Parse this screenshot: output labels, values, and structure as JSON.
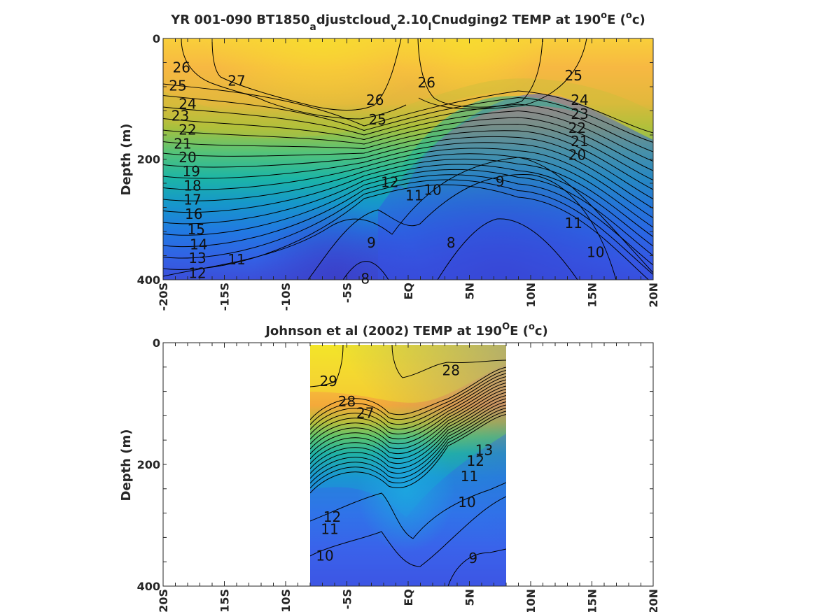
{
  "chart_data": [
    {
      "type": "contour",
      "title": "YR 001-090 BT1850_adjustcloud_v2.10_lCnudging2 TEMP at 190°E (°c)",
      "title_parts": {
        "main": "YR 001-090 BT1850",
        "sub_a": "a",
        "mid1": "djustcloud",
        "sub_v": "v",
        "mid2": "2.10",
        "sub_l": "l",
        "tail": "Cnudging2 TEMP at 190",
        "sup_o": "o",
        "e_paren": "E (",
        "sup_o2": "o",
        "end": "c)"
      },
      "ylabel": "Depth (m)",
      "xlim": [
        -20,
        20
      ],
      "ylim": [
        0,
        400
      ],
      "y_reversed": true,
      "x_ticks": [
        "-20S",
        "-15S",
        "-10S",
        "-5S",
        "EQ",
        "5N",
        "10N",
        "15N",
        "20N"
      ],
      "y_ticks": [
        "0",
        "200",
        "400"
      ],
      "colormap": "parula",
      "contour_labels": [
        {
          "v": "26",
          "lat": -18.5,
          "d": 50
        },
        {
          "v": "27",
          "lat": -14,
          "d": 72
        },
        {
          "v": "25",
          "lat": -18.8,
          "d": 80
        },
        {
          "v": "24",
          "lat": -18,
          "d": 110
        },
        {
          "v": "23",
          "lat": -18.6,
          "d": 130
        },
        {
          "v": "22",
          "lat": -18,
          "d": 153
        },
        {
          "v": "21",
          "lat": -18.4,
          "d": 176
        },
        {
          "v": "20",
          "lat": -18,
          "d": 199
        },
        {
          "v": "19",
          "lat": -17.7,
          "d": 222
        },
        {
          "v": "18",
          "lat": -17.6,
          "d": 246
        },
        {
          "v": "17",
          "lat": -17.6,
          "d": 269
        },
        {
          "v": "16",
          "lat": -17.5,
          "d": 293
        },
        {
          "v": "15",
          "lat": -17.3,
          "d": 318
        },
        {
          "v": "14",
          "lat": -17.1,
          "d": 343
        },
        {
          "v": "13",
          "lat": -17.2,
          "d": 366
        },
        {
          "v": "12",
          "lat": -17.2,
          "d": 391
        },
        {
          "v": "11",
          "lat": -14,
          "d": 368
        },
        {
          "v": "26",
          "lat": -2.7,
          "d": 104
        },
        {
          "v": "25",
          "lat": -2.5,
          "d": 136
        },
        {
          "v": "12",
          "lat": -1.5,
          "d": 240
        },
        {
          "v": "11",
          "lat": 0.5,
          "d": 262
        },
        {
          "v": "10",
          "lat": 2,
          "d": 253
        },
        {
          "v": "9",
          "lat": 7.5,
          "d": 239
        },
        {
          "v": "9",
          "lat": -3,
          "d": 340
        },
        {
          "v": "8",
          "lat": -3.5,
          "d": 400
        },
        {
          "v": "8",
          "lat": 3.5,
          "d": 340
        },
        {
          "v": "26",
          "lat": 1.5,
          "d": 75
        },
        {
          "v": "25",
          "lat": 13.5,
          "d": 63
        },
        {
          "v": "24",
          "lat": 14,
          "d": 104
        },
        {
          "v": "23",
          "lat": 14,
          "d": 127
        },
        {
          "v": "22",
          "lat": 13.8,
          "d": 150
        },
        {
          "v": "21",
          "lat": 14,
          "d": 172
        },
        {
          "v": "20",
          "lat": 13.8,
          "d": 195
        },
        {
          "v": "11",
          "lat": 13.5,
          "d": 308
        },
        {
          "v": "10",
          "lat": 15.3,
          "d": 356
        }
      ]
    },
    {
      "type": "contour",
      "title": "Johnson et al (2002) TEMP at 190°E (°c)",
      "title_parts": {
        "main": "Johnson et al (2002) TEMP at 190",
        "sup_o": "O",
        "e_paren": "E (",
        "sup_o2": "o",
        "end": "c)"
      },
      "ylabel": "Depth (m)",
      "xlim": [
        -20,
        20
      ],
      "ylim": [
        0,
        400
      ],
      "y_reversed": true,
      "data_extent_lat": [
        -8,
        8
      ],
      "x_ticks": [
        "-20S",
        "-15S",
        "-10S",
        "-5S",
        "EQ",
        "5N",
        "10N",
        "15N",
        "20N"
      ],
      "y_ticks": [
        "0",
        "200",
        "400"
      ],
      "colormap": "parula",
      "contour_labels": [
        {
          "v": "29",
          "lat": -6.5,
          "d": 65
        },
        {
          "v": "28",
          "lat": 3.5,
          "d": 47
        },
        {
          "v": "28",
          "lat": -5,
          "d": 98
        },
        {
          "v": "27",
          "lat": -3.5,
          "d": 117
        },
        {
          "v": "12",
          "lat": 5.5,
          "d": 196
        },
        {
          "v": "13",
          "lat": 6.2,
          "d": 178
        },
        {
          "v": "11",
          "lat": 5,
          "d": 221
        },
        {
          "v": "10",
          "lat": 4.8,
          "d": 264
        },
        {
          "v": "12",
          "lat": -6.2,
          "d": 288
        },
        {
          "v": "11",
          "lat": -6.4,
          "d": 308
        },
        {
          "v": "10",
          "lat": -6.8,
          "d": 352
        },
        {
          "v": "9",
          "lat": 5.3,
          "d": 356
        }
      ]
    }
  ]
}
